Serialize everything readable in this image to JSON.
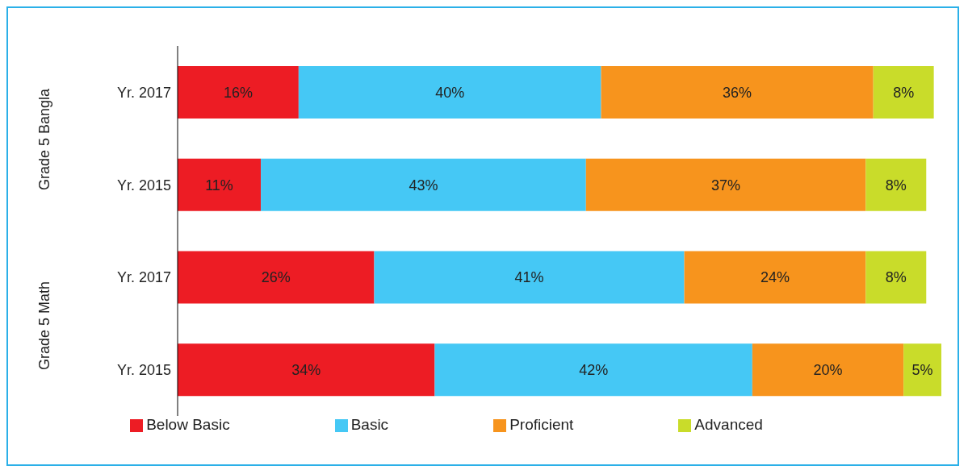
{
  "chart_data": {
    "type": "bar",
    "orientation": "horizontal",
    "stacked": true,
    "categories": [
      "Yr. 2017",
      "Yr. 2015",
      "Yr. 2017",
      "Yr. 2015"
    ],
    "series": [
      {
        "name": "Below Basic",
        "color": "#ed1c24",
        "values": [
          16,
          11,
          26,
          34
        ],
        "value_labels": [
          "16%",
          "11%",
          "26%",
          "34%"
        ]
      },
      {
        "name": "Basic",
        "color": "#45c8f5",
        "values": [
          40,
          43,
          41,
          42
        ],
        "value_labels": [
          "40%",
          "43%",
          "41%",
          "42%"
        ]
      },
      {
        "name": "Proficient",
        "color": "#f7941d",
        "values": [
          36,
          37,
          24,
          20
        ],
        "value_labels": [
          "36%",
          "37%",
          "24%",
          "20%"
        ]
      },
      {
        "name": "Advanced",
        "color": "#c9dc2a",
        "values": [
          8,
          8,
          8,
          5
        ],
        "value_labels": [
          "8%",
          "8%",
          "8%",
          "5%"
        ]
      }
    ],
    "legend": "bottom",
    "annotations": [
      "Grade 5 Bangla",
      "Grade 5 Math"
    ]
  }
}
